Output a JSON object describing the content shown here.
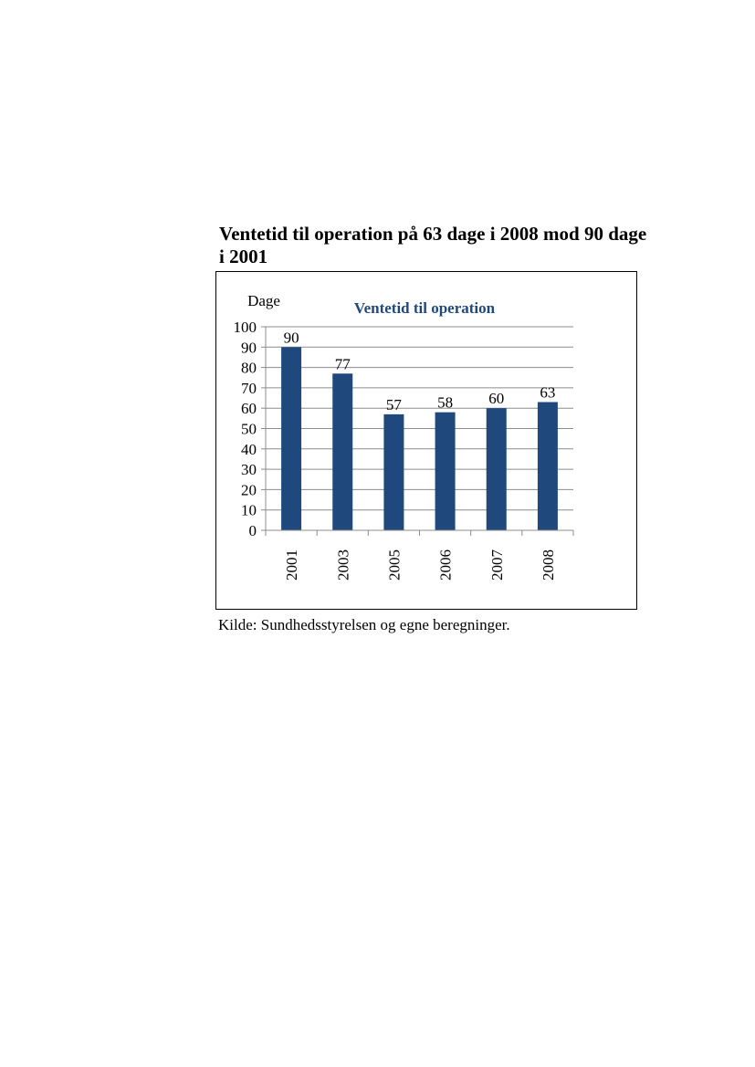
{
  "document": {
    "heading": "Ventetid til operation på 63 dage i 2008 mod 90 dage i 2001",
    "source": "Kilde: Sundhedsstyrelsen og egne beregninger."
  },
  "chart_data": {
    "type": "bar",
    "title": "Ventetid til operation",
    "ylabel": "Dage",
    "xlabel": "",
    "categories": [
      "2001",
      "2003",
      "2005",
      "2006",
      "2007",
      "2008"
    ],
    "values": [
      90,
      77,
      57,
      58,
      60,
      63
    ],
    "data_labels": [
      "90",
      "77",
      "57",
      "58",
      "60",
      "63"
    ],
    "ylim": [
      0,
      100
    ],
    "yticks": [
      0,
      10,
      20,
      30,
      40,
      50,
      60,
      70,
      80,
      90,
      100
    ],
    "grid": true,
    "legend": "none",
    "colors": {
      "bar": "#1f497d",
      "title": "#1f497d",
      "grid": "#8c8c8c"
    }
  }
}
